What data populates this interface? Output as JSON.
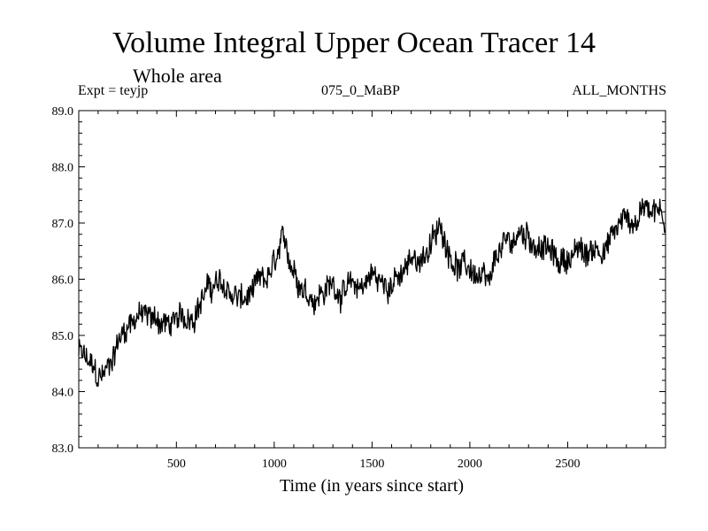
{
  "chart_data": {
    "type": "line",
    "title": "Volume Integral Upper Ocean Tracer 14",
    "subtitle": "Whole area",
    "expt_label": "Expt = teyjp",
    "run_label": "075_0_MaBP",
    "months_label": "ALL_MONTHS",
    "xlabel": "Time (in years since start)",
    "ylabel": "",
    "xlim": [
      1,
      3000
    ],
    "ylim": [
      83.0,
      89.0
    ],
    "x_ticks": [
      500,
      1000,
      1500,
      2000,
      2500
    ],
    "x_tick_labels": [
      "500",
      "1000",
      "1500",
      "2000",
      "2500"
    ],
    "y_ticks": [
      83.0,
      84.0,
      85.0,
      86.0,
      87.0,
      88.0,
      89.0
    ],
    "y_tick_labels": [
      "83.0",
      "84.0",
      "85.0",
      "86.0",
      "87.0",
      "88.0",
      "89.0"
    ],
    "grid": false,
    "series": [
      {
        "name": "Tracer 14 volume integral",
        "color": "#000000",
        "x": [
          1,
          50,
          100,
          150,
          200,
          250,
          300,
          350,
          400,
          450,
          500,
          550,
          600,
          650,
          700,
          750,
          800,
          850,
          900,
          950,
          1000,
          1050,
          1100,
          1150,
          1200,
          1250,
          1300,
          1350,
          1400,
          1450,
          1500,
          1550,
          1600,
          1650,
          1700,
          1750,
          1800,
          1850,
          1900,
          1950,
          2000,
          2050,
          2100,
          2150,
          2200,
          2250,
          2300,
          2350,
          2400,
          2450,
          2500,
          2550,
          2600,
          2650,
          2700,
          2750,
          2800,
          2850,
          2900,
          2950,
          3000
        ],
        "y": [
          84.7,
          84.5,
          84.2,
          84.4,
          84.9,
          85.2,
          85.4,
          85.3,
          85.3,
          85.2,
          85.2,
          85.3,
          85.5,
          85.8,
          85.9,
          85.8,
          85.7,
          85.6,
          85.8,
          85.9,
          86.2,
          86.6,
          86.2,
          85.9,
          85.7,
          85.8,
          85.9,
          85.8,
          85.8,
          85.9,
          86.1,
          85.9,
          86.0,
          86.0,
          86.3,
          86.4,
          86.6,
          86.9,
          86.5,
          86.2,
          86.2,
          86.0,
          85.8,
          86.5,
          86.6,
          86.8,
          86.8,
          86.6,
          86.5,
          86.3,
          86.4,
          86.5,
          86.4,
          86.6,
          86.6,
          86.9,
          87.1,
          87.0,
          87.4,
          87.3,
          87.0
        ]
      }
    ]
  }
}
